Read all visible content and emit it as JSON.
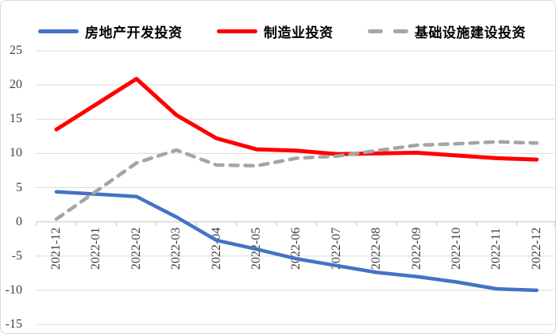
{
  "chart_data": {
    "type": "line",
    "categories": [
      "2021-12",
      "2022-01",
      "2022-02",
      "2022-03",
      "2022-04",
      "2022-05",
      "2022-06",
      "2022-07",
      "2022-08",
      "2022-09",
      "2022-10",
      "2022-11",
      "2022-12"
    ],
    "series": [
      {
        "name": "房地产开发投资",
        "color": "#4472C4",
        "style": "solid",
        "stroke_width": 4.5,
        "values": [
          4.4,
          null,
          3.7,
          0.7,
          -2.7,
          -4.0,
          -5.4,
          -6.4,
          -7.4,
          -8.0,
          -8.8,
          -9.8,
          -10.0
        ]
      },
      {
        "name": "制造业投资",
        "color": "#FF0000",
        "style": "solid",
        "stroke_width": 5,
        "values": [
          13.5,
          null,
          20.9,
          15.6,
          12.2,
          10.6,
          10.4,
          9.9,
          10.0,
          10.1,
          9.7,
          9.3,
          9.1
        ]
      },
      {
        "name": "基础设施建设投资",
        "color": "#A5A5A5",
        "style": "dashed",
        "stroke_width": 4.5,
        "values": [
          0.4,
          null,
          8.6,
          10.5,
          8.3,
          8.2,
          9.3,
          9.6,
          10.4,
          11.2,
          11.4,
          11.7,
          11.5
        ]
      }
    ],
    "yticks": [
      25,
      20,
      15,
      10,
      5,
      0,
      -5,
      -10,
      -15
    ],
    "ylim": [
      -15,
      25
    ],
    "grid": true,
    "legend_position": "top"
  },
  "colors": {
    "gridline": "#DCDCDC",
    "zero_axis": "#C6C6C6",
    "tick": "#C6C6C6",
    "axis_text": "#404040",
    "legend_text": "#000000"
  }
}
